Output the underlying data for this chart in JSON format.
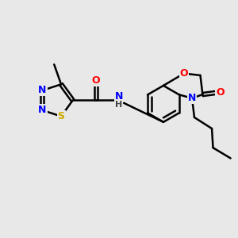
{
  "bg_color": "#e8e8e8",
  "atom_colors": {
    "C": "#000000",
    "N": "#0000ff",
    "O": "#ff0000",
    "S": "#ccaa00",
    "H": "#444444"
  },
  "bond_color": "#000000",
  "bond_width": 1.8,
  "dbo": 0.06,
  "font_size": 9,
  "font_size_small": 8
}
